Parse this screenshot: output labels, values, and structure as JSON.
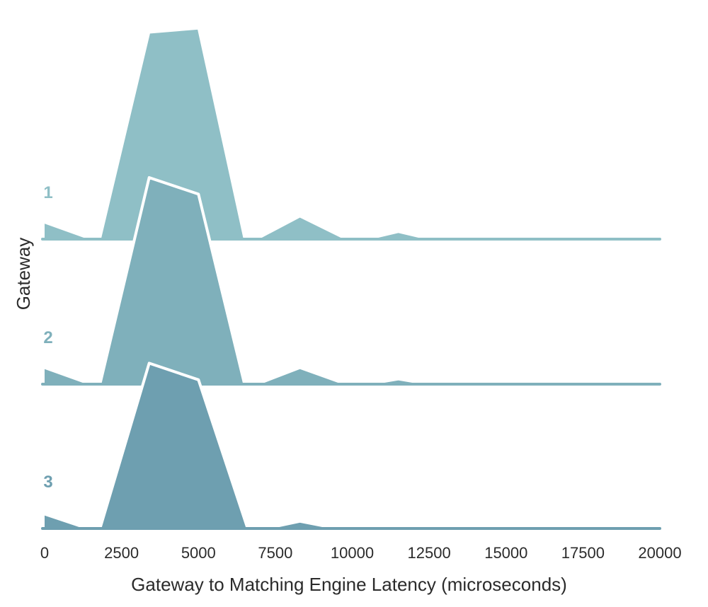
{
  "chart_data": {
    "type": "area",
    "title": "",
    "xlabel": "Gateway to Matching Engine Latency (microseconds)",
    "ylabel": "Gateway",
    "xlim": [
      0,
      20000
    ],
    "x_ticks": [
      0,
      2500,
      5000,
      7500,
      10000,
      12500,
      15000,
      17500,
      20000
    ],
    "x_tick_labels": [
      "0",
      "2500",
      "5000",
      "7500",
      "10000",
      "12500",
      "15000",
      "17500",
      "20000"
    ],
    "grid": false,
    "legend": "none",
    "density_max": 1.0,
    "series": [
      {
        "name": "1",
        "color": "#8fbfc6",
        "points": [
          [
            0,
            0.08
          ],
          [
            1500,
            0.0
          ],
          [
            1800,
            0.0
          ],
          [
            3400,
            1.0
          ],
          [
            5000,
            1.02
          ],
          [
            6500,
            0.0
          ],
          [
            6900,
            0.0
          ],
          [
            8300,
            0.11
          ],
          [
            9800,
            0.0
          ],
          [
            10500,
            0.0
          ],
          [
            11500,
            0.035
          ],
          [
            12500,
            0.0
          ],
          [
            20000,
            0.0
          ]
        ]
      },
      {
        "name": "2",
        "color": "#7fb0bb",
        "points": [
          [
            0,
            0.08
          ],
          [
            1500,
            0.0
          ],
          [
            1800,
            0.0
          ],
          [
            3400,
            1.0
          ],
          [
            5000,
            0.92
          ],
          [
            6500,
            0.0
          ],
          [
            6900,
            0.0
          ],
          [
            8300,
            0.08
          ],
          [
            9800,
            0.0
          ],
          [
            10500,
            0.0
          ],
          [
            11500,
            0.025
          ],
          [
            12500,
            0.0
          ],
          [
            20000,
            0.0
          ]
        ]
      },
      {
        "name": "3",
        "color": "#6e9fb0",
        "points": [
          [
            0,
            0.07
          ],
          [
            1400,
            0.0
          ],
          [
            1800,
            0.0
          ],
          [
            3400,
            0.8
          ],
          [
            5000,
            0.72
          ],
          [
            6600,
            0.0
          ],
          [
            7200,
            0.0
          ],
          [
            8300,
            0.035
          ],
          [
            9500,
            0.0
          ],
          [
            20000,
            0.0
          ]
        ]
      }
    ]
  }
}
